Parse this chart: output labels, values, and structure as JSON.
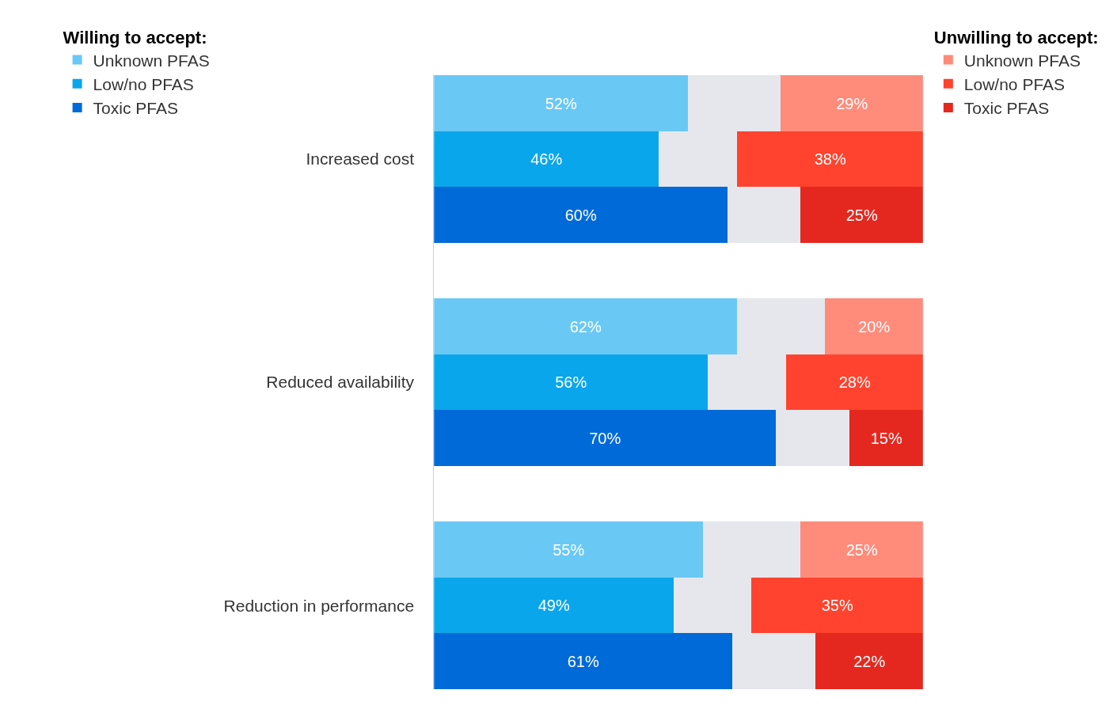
{
  "chart_data": {
    "type": "bar",
    "orientation": "horizontal",
    "stacked": true,
    "legend_title": [
      "Willing to accept:",
      "Unwilling to accept:"
    ],
    "categories": [
      null,
      "Increased cost",
      null,
      null,
      null,
      "Reduced availability",
      null,
      null,
      null,
      "Reduction in performance",
      null
    ],
    "series": [
      {
        "name": "Unknown PFAS",
        "color": "#6ac8f5",
        "values": [
          52,
          null,
          null,
          null,
          62,
          null,
          null,
          null,
          55,
          null,
          null
        ],
        "value_labels": [
          "52%",
          null,
          null,
          null,
          "62%",
          null,
          null,
          null,
          "55%",
          null,
          null
        ]
      },
      {
        "name": "Low/no PFAS",
        "color": "#0aa6ec",
        "values": [
          null,
          46,
          null,
          null,
          null,
          56,
          null,
          null,
          null,
          49,
          null
        ],
        "value_labels": [
          null,
          "46%",
          null,
          null,
          null,
          "56%",
          null,
          null,
          null,
          "49%",
          null
        ]
      },
      {
        "name": "Toxic PFAS",
        "color": "#006ad9",
        "values": [
          null,
          null,
          60,
          null,
          null,
          null,
          70,
          null,
          null,
          null,
          61
        ],
        "value_labels": [
          null,
          null,
          "60%",
          null,
          null,
          null,
          "70%",
          null,
          null,
          null,
          "61%"
        ]
      },
      {
        "color": "#e6e7ec",
        "values": [
          19,
          16,
          15,
          null,
          18,
          16,
          15,
          null,
          20,
          16,
          17
        ]
      },
      {
        "name": "Unknown PFAS",
        "color": "#ff8b7b",
        "values": [
          29,
          null,
          null,
          null,
          20,
          null,
          null,
          null,
          25,
          null,
          null
        ],
        "value_labels": [
          "29%",
          null,
          null,
          null,
          "20%",
          null,
          null,
          null,
          "25%",
          null,
          null
        ]
      },
      {
        "name": "Low/no PFAS",
        "color": "#ff432e",
        "values": [
          null,
          38,
          null,
          null,
          null,
          28,
          null,
          null,
          null,
          35,
          null
        ],
        "value_labels": [
          null,
          "38%",
          null,
          null,
          null,
          "28%",
          null,
          null,
          null,
          "35%",
          null
        ]
      },
      {
        "name": "Toxic PFAS",
        "color": "#e5281f",
        "values": [
          null,
          null,
          25,
          null,
          null,
          null,
          15,
          null,
          null,
          null,
          22
        ],
        "value_labels": [
          null,
          null,
          "25%",
          null,
          null,
          null,
          "15%",
          null,
          null,
          null,
          "22%"
        ]
      }
    ],
    "xlim": [
      0,
      100
    ],
    "tick_labels": "y",
    "legend": "top"
  }
}
